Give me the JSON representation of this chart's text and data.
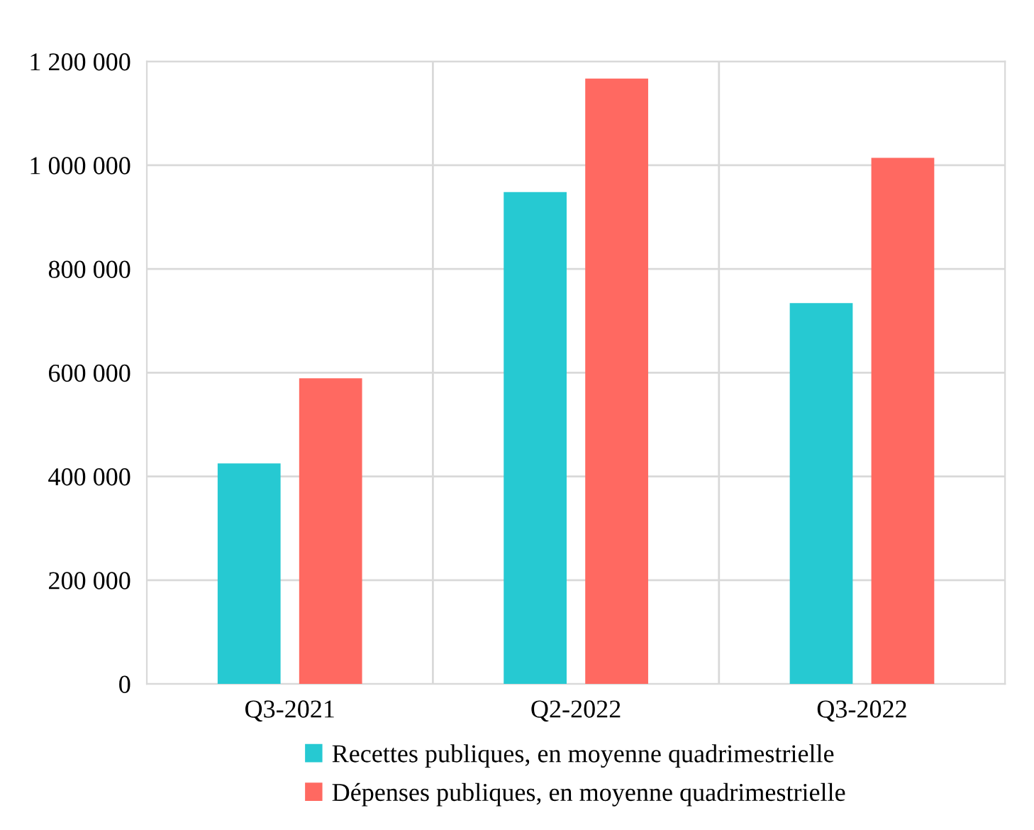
{
  "chart_data": {
    "type": "bar",
    "categories": [
      "Q3-2021",
      "Q2-2022",
      "Q3-2022"
    ],
    "series": [
      {
        "name": "Recettes publiques, en moyenne quadrimestrielle",
        "color": "#26c9d2",
        "values": [
          425000,
          948000,
          734000
        ]
      },
      {
        "name": "Dépenses publiques, en moyenne quadrimestrielle",
        "color": "#ff6961",
        "values": [
          589000,
          1167000,
          1014000
        ]
      }
    ],
    "ylim": [
      0,
      1200000
    ],
    "yticks": [
      0,
      {
        "value": 200000,
        "label": "200 000"
      },
      {
        "value": 400000,
        "label": "400 000"
      },
      {
        "value": 600000,
        "label": "600 000"
      },
      {
        "value": 800000,
        "label": "800 000"
      },
      {
        "value": 1000000,
        "label": "1 000 000"
      },
      {
        "value": 1200000,
        "label": "1 200 000"
      }
    ],
    "grid": true,
    "legend": "bottom"
  }
}
